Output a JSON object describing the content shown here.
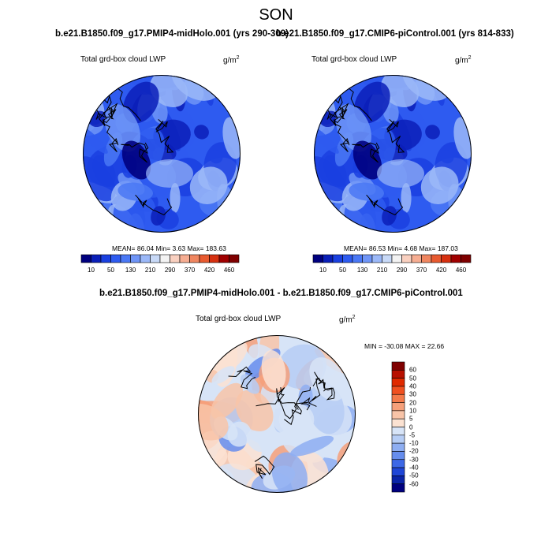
{
  "season_title": "SON",
  "panels": [
    {
      "title": "b.e21.B1850.f09_g17.PMIP4-midHolo.001 (yrs 290-309)",
      "variable": "Total grd-box cloud LWP",
      "units_base": "g/m",
      "units_exp": "2",
      "stats": "MEAN=  86.04  Min=   3.63  Max= 183.63",
      "colorbar_ticks": [
        "10",
        "50",
        "130",
        "210",
        "290",
        "370",
        "420",
        "460"
      ]
    },
    {
      "title": "b.e21.B1850.f09_g17.CMIP6-piControl.001 (yrs 814-833)",
      "variable": "Total grd-box cloud LWP",
      "units_base": "g/m",
      "units_exp": "2",
      "stats": "MEAN=  86.53  Min=   4.68  Max= 187.03",
      "colorbar_ticks": [
        "10",
        "50",
        "130",
        "210",
        "290",
        "370",
        "420",
        "460"
      ]
    }
  ],
  "diff_panel": {
    "title": "b.e21.B1850.f09_g17.PMIP4-midHolo.001 - b.e21.B1850.f09_g17.CMIP6-piControl.001",
    "variable": "Total grd-box cloud LWP",
    "units_base": "g/m",
    "units_exp": "2",
    "stats": "MIN = -30.08 MAX =  22.66",
    "colorbar_ticks": [
      "60",
      "50",
      "40",
      "30",
      "20",
      "10",
      "5",
      "0",
      "-5",
      "-10",
      "-20",
      "-30",
      "-40",
      "-50",
      "-60"
    ]
  },
  "colors": {
    "abs_scale": [
      "#00007f",
      "#0a1fb8",
      "#1a40e0",
      "#2e5bf0",
      "#4a78f5",
      "#6f95f7",
      "#9bb8f8",
      "#c8d9f7",
      "#f3f3f3",
      "#f9d0c0",
      "#f6ad92",
      "#f08660",
      "#e85a30",
      "#d63010",
      "#a00000",
      "#7f0000"
    ],
    "diff_scale": [
      "#7f0000",
      "#b81000",
      "#e02a00",
      "#f05020",
      "#f47a4a",
      "#f6a07a",
      "#f8c4a8",
      "#fbe2d2",
      "#d7e4f7",
      "#b6cdf5",
      "#8eaef2",
      "#668ded",
      "#3d68e6",
      "#1f46d6",
      "#0a24a8",
      "#00007f"
    ]
  }
}
